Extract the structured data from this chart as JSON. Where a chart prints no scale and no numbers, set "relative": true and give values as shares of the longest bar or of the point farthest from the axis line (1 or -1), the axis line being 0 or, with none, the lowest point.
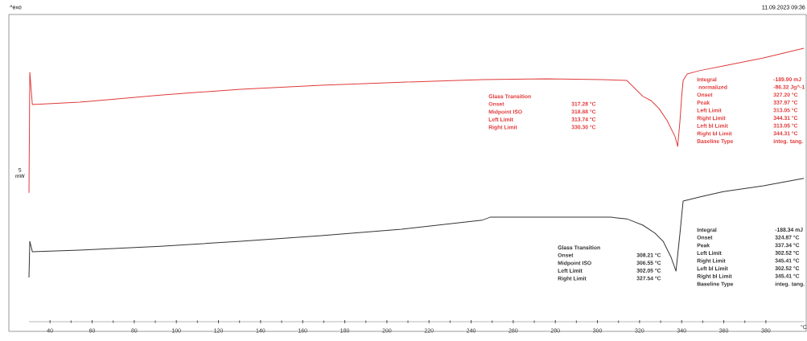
{
  "chart_data": {
    "type": "line",
    "relative": true,
    "xlabel": "°C",
    "ylabel": "5 mW",
    "xlim": [
      30,
      398
    ],
    "xticks": [
      40,
      60,
      80,
      100,
      120,
      140,
      160,
      180,
      200,
      220,
      240,
      260,
      280,
      300,
      320,
      340,
      360,
      380
    ],
    "grid": false,
    "marker": "none",
    "line_style": "solid",
    "series": [
      {
        "color": "#e03a3a",
        "x": [
          30.0,
          30.4,
          31.6,
          54.1,
          67.5,
          92.4,
          130.6,
          168.8,
          207.0,
          245.2,
          275.8,
          302.5,
          314.0,
          317.8,
          321.6,
          325.4,
          329.3,
          333.1,
          336.9,
          338.1,
          339.2,
          340.0,
          340.7,
          342.6,
          348.4,
          359.8,
          378.9,
          398
        ],
        "values": [
          0.471,
          0.912,
          0.794,
          0.803,
          0.812,
          0.829,
          0.85,
          0.865,
          0.876,
          0.885,
          0.888,
          0.885,
          0.882,
          0.853,
          0.824,
          0.809,
          0.779,
          0.735,
          0.676,
          0.641,
          0.735,
          0.824,
          0.882,
          0.906,
          0.918,
          0.935,
          0.965,
          1.0
        ]
      },
      {
        "color": "#333333",
        "x": [
          30.0,
          30.4,
          31.6,
          54.1,
          92.4,
          130.6,
          168.8,
          207.0,
          245.2,
          249.0,
          283.4,
          306.3,
          314.0,
          321.6,
          327.3,
          331.2,
          335.0,
          337.3,
          339.2,
          340.0,
          340.7,
          348.4,
          359.8,
          378.9,
          398
        ],
        "values": [
          0.162,
          0.294,
          0.256,
          0.262,
          0.276,
          0.294,
          0.315,
          0.338,
          0.371,
          0.382,
          0.382,
          0.382,
          0.376,
          0.353,
          0.324,
          0.294,
          0.235,
          0.185,
          0.324,
          0.388,
          0.441,
          0.456,
          0.476,
          0.497,
          0.524
        ]
      }
    ],
    "annotations": [
      "Glass Transition",
      "Onset",
      "317.28 °C",
      "Midpoint ISO",
      "318.88 °C",
      "Left Limit",
      "313.74 °C",
      "Right Limit",
      "330.30 °C",
      "Integral",
      "-189.90 mJ",
      " normalized",
      "-86.32 Jg^-1",
      "Onset",
      "327.20 °C",
      "Peak",
      "337.97 °C",
      "Left Limit",
      "313.05 °C",
      "Right Limit",
      "344.31 °C",
      "Left bl Limit",
      "313.05 °C",
      "Right bl Limit",
      "344.31 °C",
      "Baseline Type",
      "integ. tang.",
      "Glass Transition",
      "Onset",
      "308.21 °C",
      "Midpoint ISO",
      "306.55 °C",
      "Left Limit",
      "302.05 °C",
      "Right Limit",
      "327.54 °C",
      "Integral",
      "-188.34 mJ",
      "Onset",
      "324.87 °C",
      "Peak",
      "337.34 °C",
      "Left Limit",
      "302.52 °C",
      "Right Limit",
      "345.41 °C",
      "Left bl Limit",
      "302.52 °C",
      "Right bl Limit",
      "345.41 °C",
      "Baseline Type",
      "integ. tang.",
      "^exo",
      "11.09.2023 09:36"
    ]
  }
}
